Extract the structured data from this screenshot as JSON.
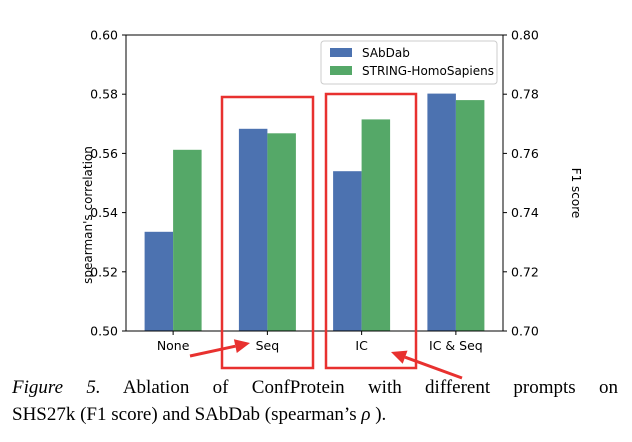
{
  "chart_data": {
    "type": "bar",
    "categories": [
      "None",
      "Seq",
      "IC",
      "IC & Seq"
    ],
    "series": [
      {
        "name": "SAbDab",
        "axis": "left",
        "color": "#4c72b0",
        "values": [
          0.5335,
          0.5683,
          0.554,
          0.5802
        ]
      },
      {
        "name": "STRING-HomoSapiens",
        "axis": "right",
        "color": "#55a868",
        "values": [
          0.7612,
          0.7668,
          0.7715,
          0.778
        ]
      }
    ],
    "ylabel_left": "spearman's correlation",
    "ylabel_right": "F1 score",
    "ylim_left": [
      0.5,
      0.6
    ],
    "ylim_right": [
      0.7,
      0.8
    ],
    "yticks_left": [
      "0.50",
      "0.52",
      "0.54",
      "0.56",
      "0.58",
      "0.60"
    ],
    "yticks_right": [
      "0.70",
      "0.72",
      "0.74",
      "0.76",
      "0.78",
      "0.80"
    ],
    "legend_position": "top-right",
    "grid": false,
    "annotations": {
      "highlight_boxes": [
        "Seq",
        "IC"
      ],
      "arrows_to": [
        "Seq",
        "IC"
      ],
      "color": "#e8312f"
    }
  },
  "caption": {
    "lead": "Figure 5.",
    "line1_rest": " Ablation of ConfProtein with different prompts on",
    "line2": "SHS27k (F1 score) and SAbDab (spearman’s ",
    "rho": "ρ",
    "line2_end": " )."
  }
}
